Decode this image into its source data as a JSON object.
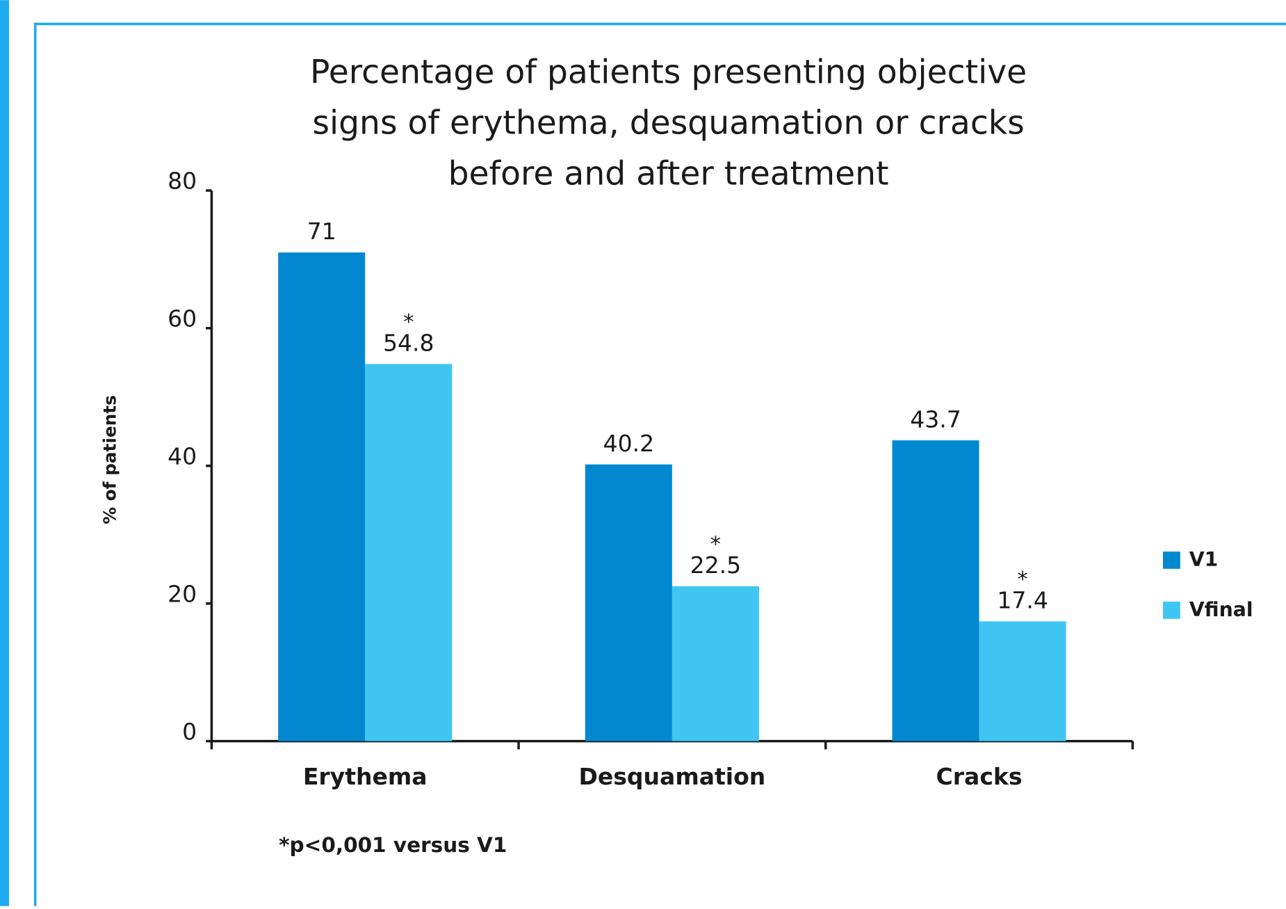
{
  "chart_data": {
    "type": "bar",
    "title": [
      "Percentage of patients presenting objective",
      "signs of erythema, desquamation or cracks",
      "before and after treatment"
    ],
    "y_label": "% of patients",
    "categories": [
      "Erythema",
      "Desquamation",
      "Cracks"
    ],
    "series": [
      {
        "name": "V1",
        "color": "#0288d1",
        "values": [
          71,
          40.2,
          43.7
        ]
      },
      {
        "name": "Vfinal",
        "color": "#40c6f3",
        "values": [
          54.8,
          22.5,
          17.4
        ],
        "markers": [
          "*",
          "*",
          "*"
        ]
      }
    ],
    "ylim": [
      0,
      80
    ],
    "yticks": [
      0,
      20,
      40,
      60,
      80
    ],
    "legend": "right",
    "footnote": "*p<0,001 versus V1"
  }
}
